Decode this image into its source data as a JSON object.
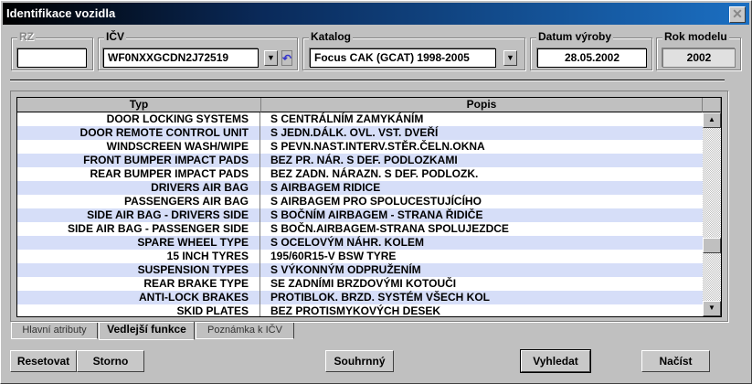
{
  "window": {
    "title": "Identifikace vozidla",
    "close_icon": "close-icon"
  },
  "fields": {
    "rz": {
      "label": "RZ",
      "value": ""
    },
    "icv": {
      "label": "IČV",
      "value": "WF0NXXGCDN2J72519"
    },
    "katalog": {
      "label": "Katalog",
      "value": "Focus CAK (GCAT) 1998-2005"
    },
    "datum": {
      "label": "Datum výroby",
      "value": "28.05.2002"
    },
    "rok": {
      "label": "Rok modelu",
      "value": "2002"
    }
  },
  "table": {
    "columns": [
      "Typ",
      "Popis"
    ],
    "row_alt_color": "#d6def8",
    "rows": [
      [
        "DOOR LOCKING SYSTEMS",
        "S CENTRÁLNÍM ZAMYKÁNÍM"
      ],
      [
        "DOOR REMOTE CONTROL UNIT",
        "S JEDN.DÁLK. OVL. VST. DVEŘÍ"
      ],
      [
        "WINDSCREEN WASH/WIPE",
        "S PEVN.NAST.INTERV.STĚR.ČELN.OKNA"
      ],
      [
        "FRONT BUMPER IMPACT PADS",
        "BEZ PR. NÁR. S DEF. PODLOZKAMI"
      ],
      [
        "REAR BUMPER IMPACT PADS",
        "BEZ ZADN. NÁRAZN. S DEF. PODLOZK."
      ],
      [
        "DRIVERS AIR BAG",
        "S AIRBAGEM RIDICE"
      ],
      [
        "PASSENGERS AIR BAG",
        "S AIRBAGEM PRO SPOLUCESTUJÍCÍHO"
      ],
      [
        "SIDE AIR BAG - DRIVERS SIDE",
        "S BOČNÍM AIRBAGEM - STRANA ŘIDIČE"
      ],
      [
        "SIDE AIR BAG - PASSENGER SIDE",
        "S BOČN.AIRBAGEM-STRANA SPOLUJEZDCE"
      ],
      [
        "SPARE WHEEL TYPE",
        "S OCELOVÝM NÁHR. KOLEM"
      ],
      [
        "15 INCH TYRES",
        "195/60R15-V BSW TYRE"
      ],
      [
        "SUSPENSION TYPES",
        "S VÝKONNÝM ODPRUŽENÍM"
      ],
      [
        "REAR BRAKE TYPE",
        "SE ZADNÍMI BRZDOVÝMI KOTOUČI"
      ],
      [
        "ANTI-LOCK BRAKES",
        "PROTIBLOK. BRZD. SYSTÉM VŠECH KOL"
      ],
      [
        "SKID PLATES",
        "BEZ PROTISMYKOVÝCH DESEK"
      ]
    ]
  },
  "tabs": [
    {
      "label": "Hlavní atributy"
    },
    {
      "label": "Vedlejší funkce",
      "active": true
    },
    {
      "label": "Poznámka k IČV"
    }
  ],
  "buttons": {
    "reset": "Resetovat",
    "storno": "Storno",
    "souhrnny": "Souhrnný",
    "vyhledat": "Vyhledat",
    "nacist": "Načíst"
  }
}
